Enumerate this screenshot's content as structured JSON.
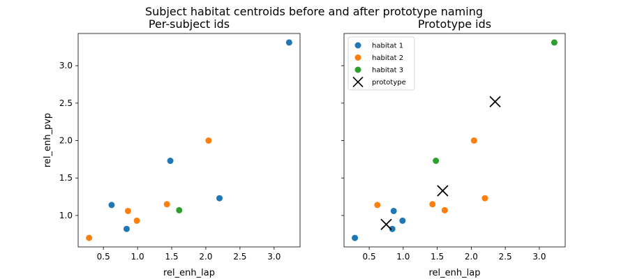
{
  "title": "Subject habitat centroids before and after prototype naming",
  "colors": {
    "habitat 1": "#1f77b4",
    "habitat 2": "#ff7f0e",
    "habitat 3": "#2ca02c",
    "prototype": "#000000"
  },
  "chart_data": [
    {
      "type": "scatter",
      "title": "Per-subject ids",
      "xlabel": "rel_enh_lap",
      "ylabel": "rel_enh_pvp",
      "xlim": [
        0.13,
        3.38
      ],
      "ylim": [
        0.58,
        3.43
      ],
      "xticks": [
        "0.5",
        "1.0",
        "1.5",
        "2.0",
        "2.5",
        "3.0"
      ],
      "yticks": [
        "1.0",
        "1.5",
        "2.0",
        "2.5",
        "3.0"
      ],
      "legend": null,
      "series": [
        {
          "color": "#1f77b4",
          "marker": "circle",
          "points": [
            [
              3.22,
              3.31
            ],
            [
              1.48,
              1.73
            ],
            [
              2.2,
              1.23
            ],
            [
              0.62,
              1.14
            ],
            [
              0.84,
              0.82
            ]
          ]
        },
        {
          "color": "#ff7f0e",
          "marker": "circle",
          "points": [
            [
              2.04,
              2.0
            ],
            [
              1.43,
              1.15
            ],
            [
              0.86,
              1.06
            ],
            [
              0.99,
              0.93
            ],
            [
              0.29,
              0.7
            ]
          ]
        },
        {
          "color": "#2ca02c",
          "marker": "circle",
          "points": [
            [
              1.61,
              1.07
            ]
          ]
        }
      ]
    },
    {
      "type": "scatter",
      "title": "Prototype ids",
      "xlabel": "rel_enh_lap",
      "ylabel": "",
      "xlim": [
        0.13,
        3.38
      ],
      "ylim": [
        0.58,
        3.43
      ],
      "xticks": [
        "0.5",
        "1.0",
        "1.5",
        "2.0",
        "2.5",
        "3.0"
      ],
      "yticks": [
        "",
        "",
        "",
        "",
        ""
      ],
      "legend": "top-left",
      "series": [
        {
          "name": "habitat 1",
          "color": "#1f77b4",
          "marker": "circle",
          "points": [
            [
              0.86,
              1.06
            ],
            [
              0.99,
              0.93
            ],
            [
              0.84,
              0.82
            ],
            [
              0.29,
              0.7
            ]
          ]
        },
        {
          "name": "habitat 2",
          "color": "#ff7f0e",
          "marker": "circle",
          "points": [
            [
              2.04,
              2.0
            ],
            [
              1.43,
              1.15
            ],
            [
              1.61,
              1.07
            ],
            [
              2.2,
              1.23
            ],
            [
              0.62,
              1.14
            ]
          ]
        },
        {
          "name": "habitat 3",
          "color": "#2ca02c",
          "marker": "circle",
          "points": [
            [
              3.22,
              3.31
            ],
            [
              1.48,
              1.73
            ]
          ]
        },
        {
          "name": "prototype",
          "color": "#000000",
          "marker": "x",
          "points": [
            [
              2.35,
              2.52
            ],
            [
              1.58,
              1.33
            ],
            [
              0.75,
              0.88
            ]
          ]
        }
      ]
    }
  ]
}
